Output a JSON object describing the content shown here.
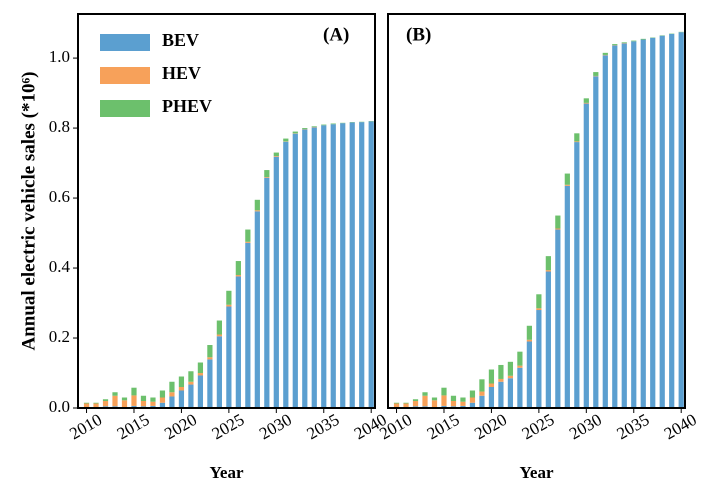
{
  "chart_data": [
    {
      "type": "stacked-bar",
      "annotation": "(A)",
      "xlabel": "Year",
      "ylabel": "Annual electric vehicle sales (*10⁶)",
      "legend": "upper left",
      "x": [
        2010,
        2011,
        2012,
        2013,
        2014,
        2015,
        2016,
        2017,
        2018,
        2019,
        2020,
        2021,
        2022,
        2023,
        2024,
        2025,
        2026,
        2027,
        2028,
        2029,
        2030,
        2031,
        2032,
        2033,
        2034,
        2035,
        2036,
        2037,
        2038,
        2039,
        2040
      ],
      "series": [
        {
          "name": "BEV",
          "color": "#5b9fd0",
          "values": [
            0.001,
            0.001,
            0.005,
            0.005,
            0.002,
            0.006,
            0.005,
            0.006,
            0.015,
            0.033,
            0.05,
            0.067,
            0.093,
            0.139,
            0.205,
            0.29,
            0.376,
            0.472,
            0.562,
            0.658,
            0.718,
            0.761,
            0.784,
            0.796,
            0.802,
            0.808,
            0.811,
            0.814,
            0.816,
            0.817,
            0.819
          ]
        },
        {
          "name": "HEV",
          "color": "#f7a15a",
          "values": [
            0.012,
            0.012,
            0.015,
            0.03,
            0.02,
            0.03,
            0.015,
            0.012,
            0.015,
            0.012,
            0.01,
            0.008,
            0.007,
            0.006,
            0.005,
            0.005,
            0.004,
            0.003,
            0.003,
            0.002,
            0.002,
            0.001,
            0.001,
            0.001,
            0.001,
            0,
            0,
            0,
            0,
            0,
            0
          ]
        },
        {
          "name": "PHEV",
          "color": "#6cc06c",
          "values": [
            0.002,
            0.002,
            0.005,
            0.01,
            0.008,
            0.022,
            0.015,
            0.012,
            0.02,
            0.03,
            0.03,
            0.03,
            0.03,
            0.035,
            0.04,
            0.04,
            0.04,
            0.035,
            0.03,
            0.02,
            0.01,
            0.008,
            0.005,
            0.003,
            0.002,
            0.002,
            0.002,
            0.001,
            0.001,
            0.001,
            0.001
          ]
        }
      ],
      "xlim": [
        2009.1,
        2040.4
      ],
      "xticks": [
        2010,
        2015,
        2020,
        2025,
        2030,
        2035,
        2040
      ],
      "ylim": [
        0,
        1.126
      ],
      "yticks": [
        {
          "value": 0,
          "label": "0.0"
        },
        0.2,
        0.4,
        0.6,
        0.8,
        {
          "value": 1,
          "label": "1.0"
        }
      ]
    },
    {
      "type": "stacked-bar",
      "annotation": "(B)",
      "xlabel": "Year",
      "x": [
        2010,
        2011,
        2012,
        2013,
        2014,
        2015,
        2016,
        2017,
        2018,
        2019,
        2020,
        2021,
        2022,
        2023,
        2024,
        2025,
        2026,
        2027,
        2028,
        2029,
        2030,
        2031,
        2032,
        2033,
        2034,
        2035,
        2036,
        2037,
        2038,
        2039,
        2040
      ],
      "series": [
        {
          "color": "#5b9fd0",
          "values": [
            0.001,
            0.001,
            0.005,
            0.005,
            0.002,
            0.006,
            0.005,
            0.006,
            0.015,
            0.035,
            0.06,
            0.075,
            0.085,
            0.115,
            0.19,
            0.28,
            0.39,
            0.51,
            0.635,
            0.76,
            0.87,
            0.948,
            1.008,
            1.036,
            1.042,
            1.048,
            1.053,
            1.058,
            1.064,
            1.069,
            1.074
          ]
        },
        {
          "color": "#f7a15a",
          "values": [
            0.012,
            0.012,
            0.015,
            0.03,
            0.02,
            0.03,
            0.015,
            0.012,
            0.015,
            0.012,
            0.01,
            0.008,
            0.007,
            0.006,
            0.005,
            0.005,
            0.004,
            0.003,
            0.003,
            0.002,
            0.002,
            0.001,
            0.001,
            0.001,
            0.001,
            0,
            0,
            0,
            0,
            0,
            0
          ]
        },
        {
          "color": "#6cc06c",
          "values": [
            0.002,
            0.002,
            0.005,
            0.01,
            0.008,
            0.022,
            0.015,
            0.012,
            0.02,
            0.035,
            0.04,
            0.04,
            0.04,
            0.04,
            0.04,
            0.04,
            0.04,
            0.037,
            0.032,
            0.023,
            0.013,
            0.011,
            0.006,
            0.003,
            0.002,
            0.002,
            0.002,
            0.001,
            0.001,
            0.001,
            0.001
          ]
        }
      ],
      "xlim": [
        2009.1,
        2040.4
      ],
      "xticks": [
        2010,
        2015,
        2020,
        2025,
        2030,
        2035,
        2040
      ],
      "ylim": [
        0,
        1.126
      ]
    }
  ]
}
